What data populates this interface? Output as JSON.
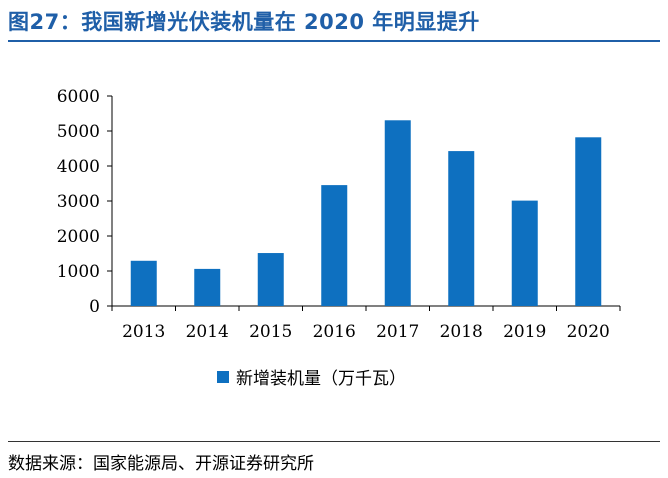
{
  "title": "图27：我国新增光伏装机量在 2020 年明显提升",
  "source": "数据来源：国家能源局、开源证券研究所",
  "colors": {
    "title": "#1f5fa8",
    "bar": "#0e70c0"
  },
  "chart_data": {
    "type": "bar",
    "categories": [
      "2013",
      "2014",
      "2015",
      "2016",
      "2017",
      "2018",
      "2019",
      "2020"
    ],
    "series": [
      {
        "name": "新增装机量（万千瓦）",
        "values": [
          1292,
          1060,
          1513,
          3454,
          5306,
          4426,
          3011,
          4820
        ]
      }
    ],
    "ylim": [
      0,
      6000
    ],
    "yticks": [
      "0",
      "1000",
      "2000",
      "3000",
      "4000",
      "5000",
      "6000"
    ],
    "grid": false,
    "legend": "bottom"
  }
}
